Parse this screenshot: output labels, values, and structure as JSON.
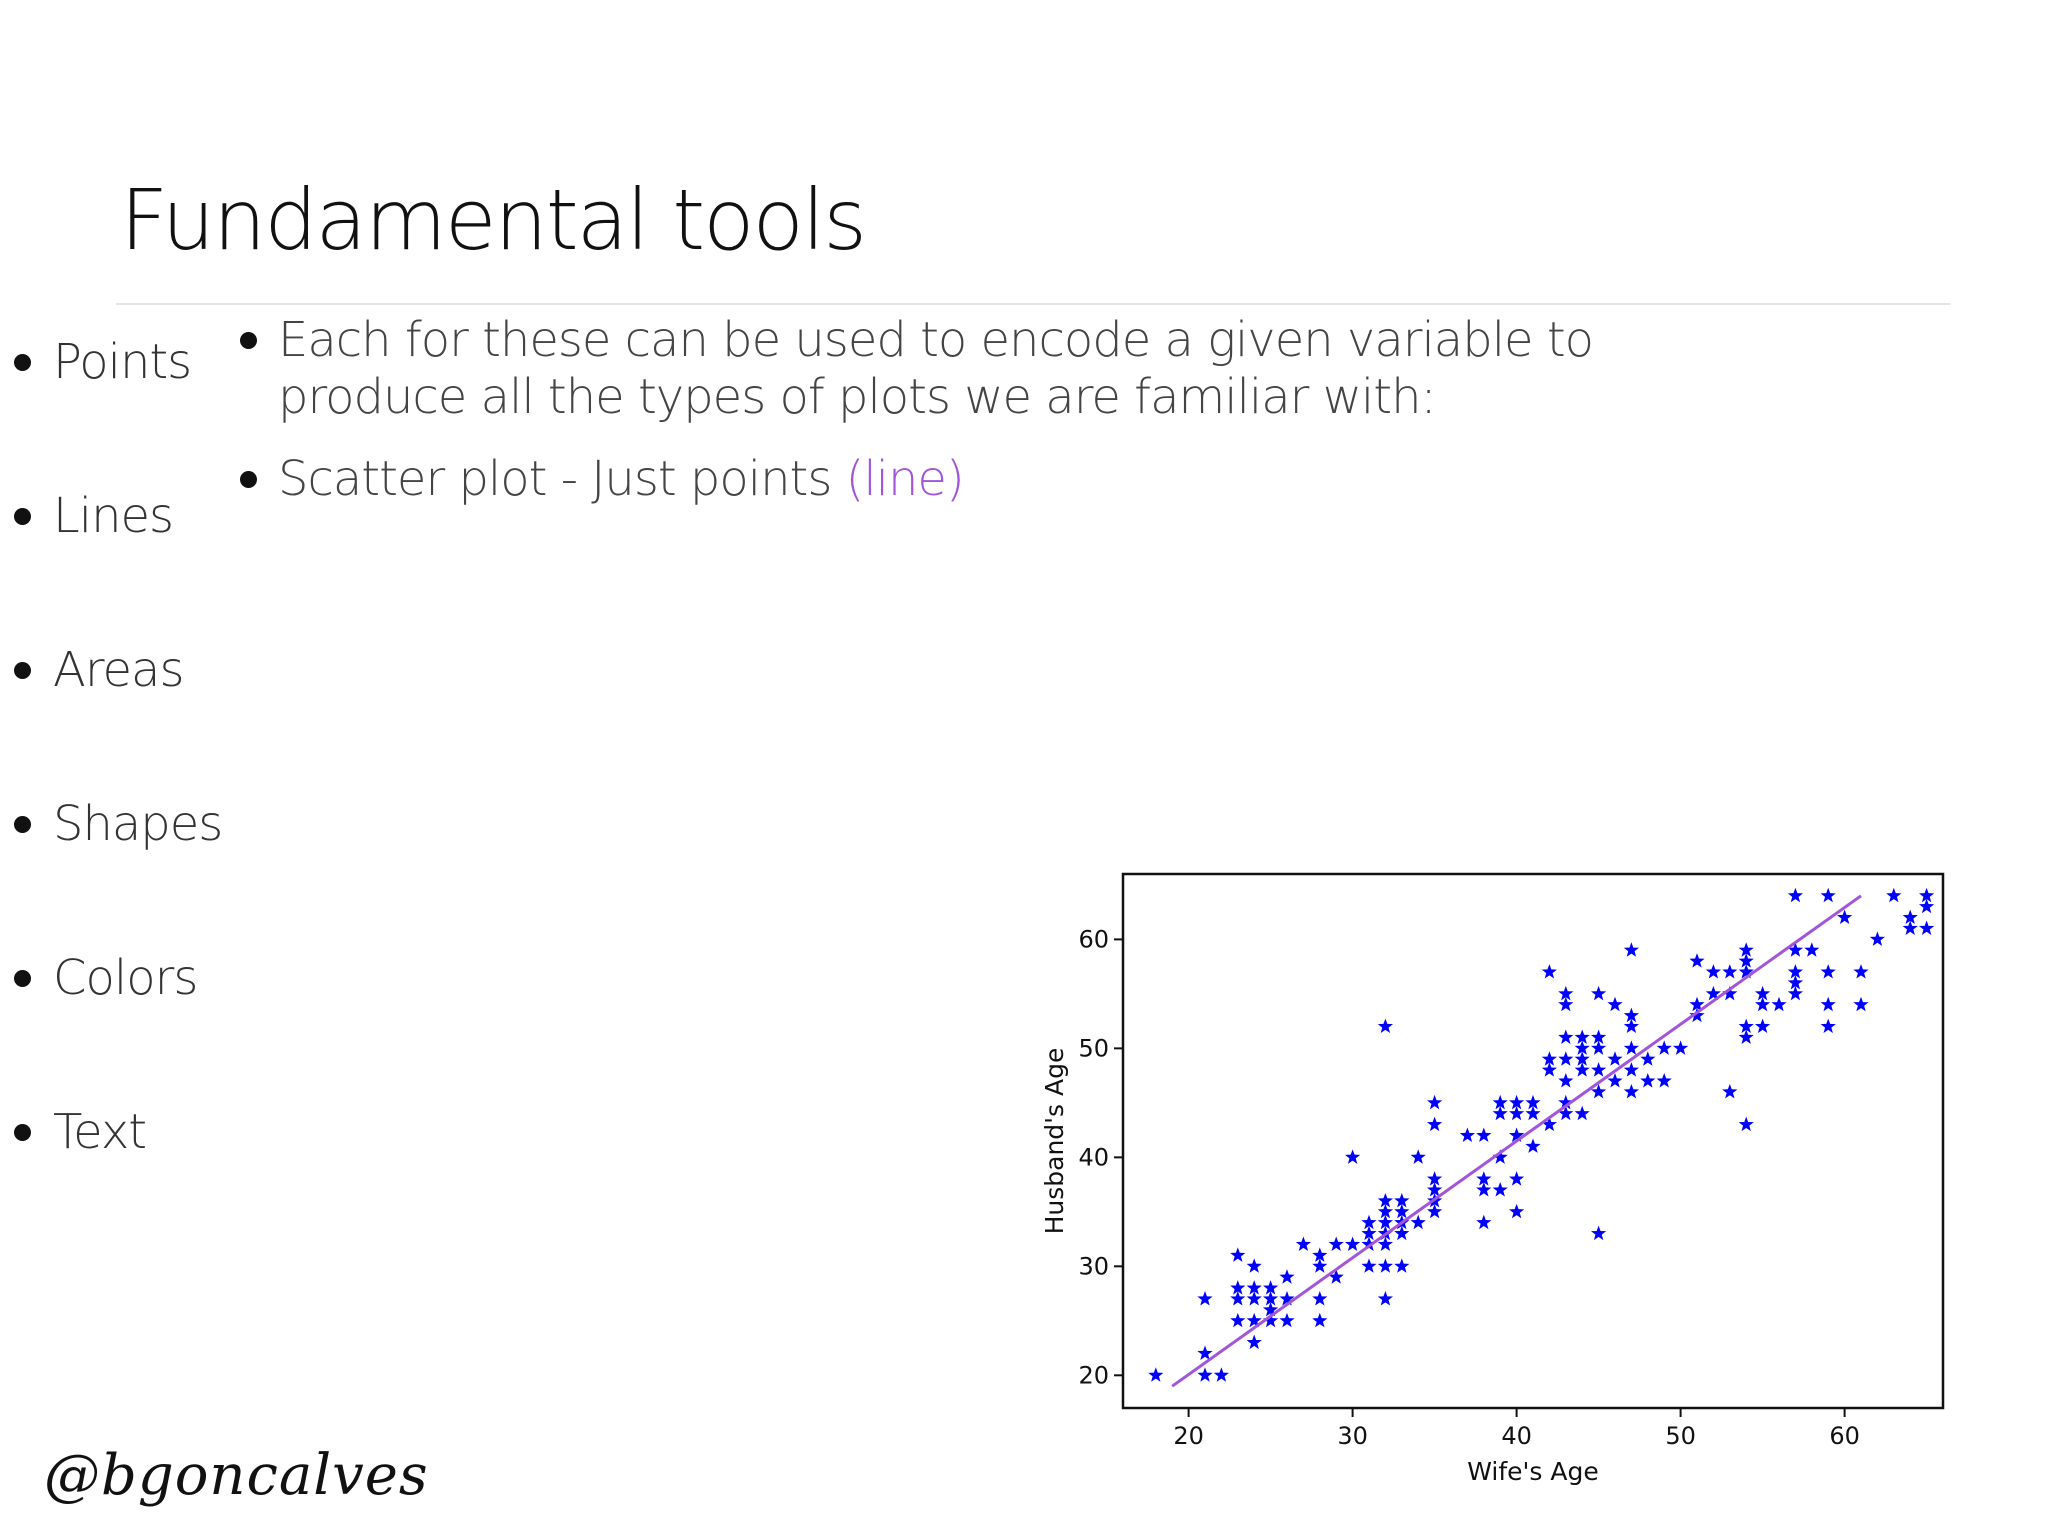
{
  "slide": {
    "title": "Fundamental tools",
    "handle": "@bgoncalves"
  },
  "left_list": [
    "Points",
    "Lines",
    "Areas",
    "Shapes",
    "Colors",
    "Text"
  ],
  "right_list": {
    "item1": "Each for these can be used to encode a given variable to produce all the types of plots we are familiar with:",
    "item2_main": "Scatter plot - Just points ",
    "item2_accent": "(line)"
  },
  "colors": {
    "accent": "#a155d8",
    "marker": "#0000ff",
    "fit_line": "#a155d8"
  },
  "chart_data": {
    "type": "scatter",
    "title": "",
    "xlabel": "Wife's Age",
    "ylabel": "Husband's Age",
    "xlim": [
      16,
      66
    ],
    "ylim": [
      17,
      66
    ],
    "xticks": [
      20,
      30,
      40,
      50,
      60
    ],
    "yticks": [
      20,
      30,
      40,
      50,
      60
    ],
    "marker": "star",
    "grid": false,
    "points": [
      [
        18,
        20
      ],
      [
        21,
        20
      ],
      [
        22,
        20
      ],
      [
        21,
        22
      ],
      [
        21,
        27
      ],
      [
        23,
        31
      ],
      [
        23,
        28
      ],
      [
        23,
        27
      ],
      [
        23,
        25
      ],
      [
        24,
        30
      ],
      [
        24,
        28
      ],
      [
        24,
        27
      ],
      [
        24,
        25
      ],
      [
        24,
        23
      ],
      [
        25,
        28
      ],
      [
        25,
        27
      ],
      [
        25,
        26
      ],
      [
        25,
        25
      ],
      [
        26,
        29
      ],
      [
        26,
        27
      ],
      [
        26,
        25
      ],
      [
        27,
        32
      ],
      [
        28,
        31
      ],
      [
        28,
        30
      ],
      [
        28,
        27
      ],
      [
        28,
        25
      ],
      [
        29,
        32
      ],
      [
        29,
        29
      ],
      [
        30,
        32
      ],
      [
        30,
        40
      ],
      [
        31,
        34
      ],
      [
        31,
        33
      ],
      [
        31,
        32
      ],
      [
        31,
        30
      ],
      [
        32,
        36
      ],
      [
        32,
        35
      ],
      [
        32,
        34
      ],
      [
        32,
        33
      ],
      [
        32,
        32
      ],
      [
        32,
        30
      ],
      [
        32,
        27
      ],
      [
        32,
        52
      ],
      [
        33,
        36
      ],
      [
        33,
        35
      ],
      [
        33,
        34
      ],
      [
        33,
        33
      ],
      [
        33,
        30
      ],
      [
        34,
        40
      ],
      [
        34,
        34
      ],
      [
        35,
        45
      ],
      [
        35,
        43
      ],
      [
        35,
        38
      ],
      [
        35,
        37
      ],
      [
        35,
        36
      ],
      [
        35,
        35
      ],
      [
        37,
        42
      ],
      [
        38,
        42
      ],
      [
        38,
        38
      ],
      [
        38,
        37
      ],
      [
        38,
        34
      ],
      [
        39,
        37
      ],
      [
        39,
        40
      ],
      [
        39,
        45
      ],
      [
        39,
        44
      ],
      [
        40,
        45
      ],
      [
        40,
        44
      ],
      [
        40,
        42
      ],
      [
        40,
        38
      ],
      [
        40,
        35
      ],
      [
        41,
        45
      ],
      [
        41,
        44
      ],
      [
        41,
        41
      ],
      [
        42,
        57
      ],
      [
        42,
        49
      ],
      [
        42,
        48
      ],
      [
        42,
        43
      ],
      [
        43,
        55
      ],
      [
        43,
        54
      ],
      [
        43,
        51
      ],
      [
        43,
        49
      ],
      [
        43,
        47
      ],
      [
        43,
        45
      ],
      [
        43,
        44
      ],
      [
        44,
        51
      ],
      [
        44,
        50
      ],
      [
        44,
        49
      ],
      [
        44,
        48
      ],
      [
        44,
        44
      ],
      [
        45,
        55
      ],
      [
        45,
        51
      ],
      [
        45,
        50
      ],
      [
        45,
        48
      ],
      [
        45,
        46
      ],
      [
        45,
        33
      ],
      [
        46,
        54
      ],
      [
        46,
        49
      ],
      [
        46,
        47
      ],
      [
        47,
        59
      ],
      [
        47,
        53
      ],
      [
        47,
        52
      ],
      [
        47,
        50
      ],
      [
        47,
        48
      ],
      [
        47,
        46
      ],
      [
        48,
        49
      ],
      [
        48,
        47
      ],
      [
        49,
        50
      ],
      [
        49,
        47
      ],
      [
        50,
        50
      ],
      [
        51,
        58
      ],
      [
        51,
        54
      ],
      [
        51,
        53
      ],
      [
        52,
        57
      ],
      [
        52,
        55
      ],
      [
        53,
        46
      ],
      [
        53,
        57
      ],
      [
        53,
        55
      ],
      [
        54,
        59
      ],
      [
        54,
        58
      ],
      [
        54,
        57
      ],
      [
        54,
        52
      ],
      [
        54,
        51
      ],
      [
        54,
        43
      ],
      [
        55,
        55
      ],
      [
        55,
        54
      ],
      [
        55,
        52
      ],
      [
        56,
        54
      ],
      [
        57,
        64
      ],
      [
        57,
        59
      ],
      [
        57,
        57
      ],
      [
        57,
        56
      ],
      [
        57,
        55
      ],
      [
        58,
        59
      ],
      [
        59,
        64
      ],
      [
        59,
        57
      ],
      [
        59,
        54
      ],
      [
        59,
        52
      ],
      [
        60,
        62
      ],
      [
        61,
        57
      ],
      [
        61,
        54
      ],
      [
        62,
        60
      ],
      [
        63,
        64
      ],
      [
        64,
        62
      ],
      [
        64,
        61
      ],
      [
        65,
        64
      ],
      [
        65,
        63
      ],
      [
        65,
        61
      ]
    ],
    "fit_line": [
      [
        19,
        19
      ],
      [
        61,
        64
      ]
    ]
  }
}
